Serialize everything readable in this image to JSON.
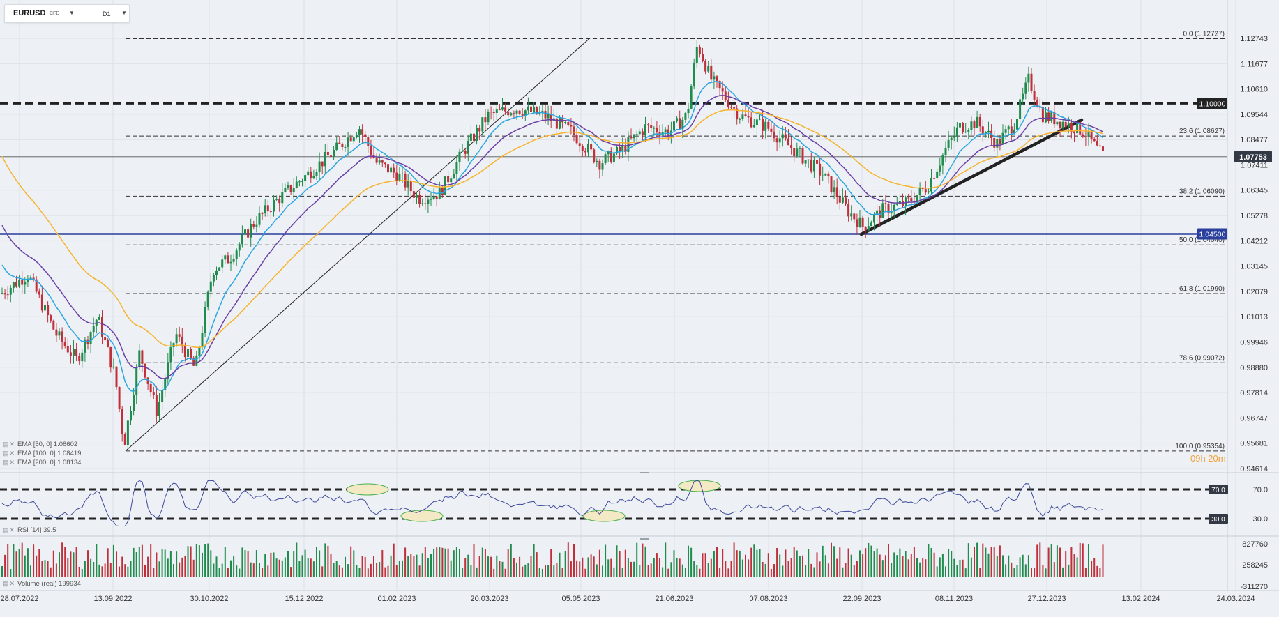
{
  "instrument": {
    "symbol": "EURUSD",
    "type": "CFD",
    "timeframe": "D1"
  },
  "price_axis_labels": [
    "1.12743",
    "1.11677",
    "1.10610",
    "1.09544",
    "1.08477",
    "1.07411",
    "1.06345",
    "1.05278",
    "1.04212",
    "1.03145",
    "1.02079",
    "1.01013",
    "0.99946",
    "0.98880",
    "0.97814",
    "0.96747",
    "0.95681",
    "0.94614"
  ],
  "date_axis_labels": [
    "28.07.2022",
    "13.09.2022",
    "30.10.2022",
    "15.12.2022",
    "01.02.2023",
    "20.03.2023",
    "05.05.2023",
    "21.06.2023",
    "07.08.2023",
    "22.09.2023",
    "08.11.2023",
    "27.12.2023",
    "13.02.2024",
    "24.03.2024"
  ],
  "fib_levels": [
    {
      "label": "0.0 (1.12727)",
      "price": 1.12727
    },
    {
      "label": "23.6 (1.08627)",
      "price": 1.08627
    },
    {
      "label": "38.2 (1.06090)",
      "price": 1.0609
    },
    {
      "label": "50.0 (1.04040)",
      "price": 1.0404
    },
    {
      "label": "61.8 (1.01990)",
      "price": 1.0199
    },
    {
      "label": "78.6 (0.99072)",
      "price": 0.99072
    },
    {
      "label": "100.0 (0.95354)",
      "price": 0.95354
    }
  ],
  "horizontal_levels": [
    {
      "label": "1.10000",
      "price": 1.1,
      "color": "#222222"
    },
    {
      "label": "1.04500",
      "price": 1.045,
      "color": "#2a3f9e"
    }
  ],
  "current_price": {
    "label": "1.07753",
    "price": 1.07753
  },
  "countdown": "09h 20m",
  "ema_legend": [
    {
      "name": "EMA",
      "text": "[50, 0] 1.08602",
      "color": "#2aa5e0"
    },
    {
      "name": "EMA",
      "text": "[100, 0] 1.08419",
      "color": "#6a3ea6"
    },
    {
      "name": "EMA",
      "text": "[200, 0] 1.08134",
      "color": "#f7b32b"
    }
  ],
  "rsi": {
    "legend": "RSI",
    "params": "[14]  39.5",
    "upper_label": "70.0",
    "lower_label": "30.0",
    "upper": 70,
    "lower": 30,
    "value": 39.5
  },
  "volume": {
    "legend": "Volume",
    "params": "(real)  199934",
    "axis_labels": [
      "827760",
      "258245",
      "-311270"
    ]
  },
  "colors": {
    "up": "#1f8c4e",
    "down": "#c0303b",
    "background": "#edf0f4",
    "grid": "#dde1e7",
    "rsi_line": "#3e4a9a",
    "highlight": "#f3e9c4",
    "highlight_border": "#49b04b"
  }
}
